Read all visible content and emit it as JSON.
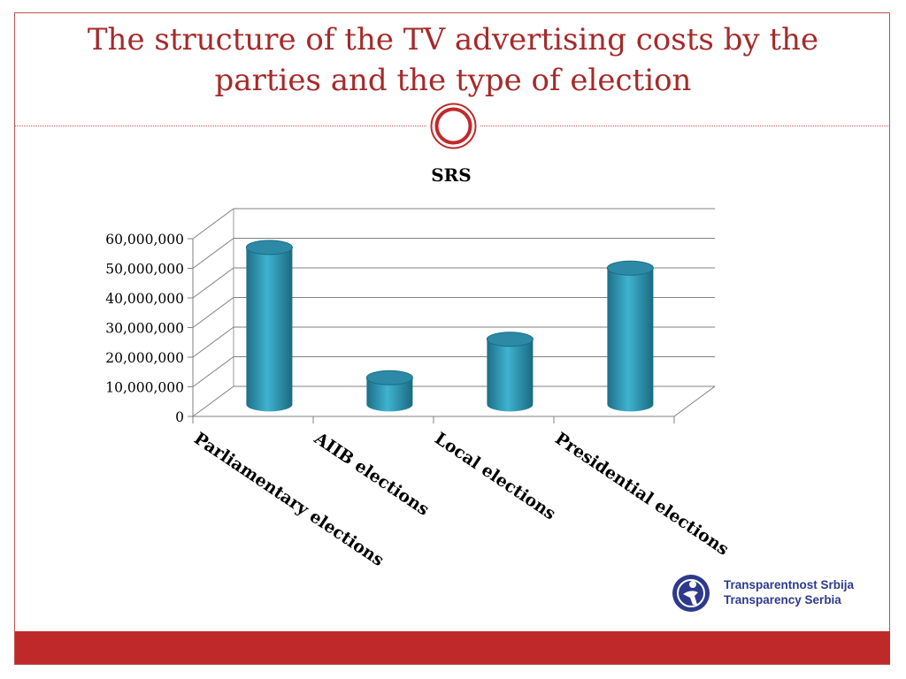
{
  "slide": {
    "title_line1": "The structure of the TV advertising costs by the",
    "title_line2": "parties and the type of election"
  },
  "logo": {
    "line1": "Transparentnost Srbija",
    "line2": "Transparency Serbia"
  },
  "colors": {
    "title": "#a52a2a",
    "accent_red": "#c0292a",
    "bar": "#2a93b0",
    "logo_blue": "#2d3a8c"
  },
  "chart_data": {
    "type": "bar",
    "title": "SRS",
    "categories": [
      "Parliamentary elections",
      "AIIB elections",
      "Local elections",
      "Presidential elections"
    ],
    "values": [
      53000000,
      9000000,
      22000000,
      46000000
    ],
    "yticks": [
      "0",
      "10,000,000",
      "20,000,000",
      "30,000,000",
      "40,000,000",
      "50,000,000",
      "60,000,000"
    ],
    "ylim": [
      0,
      60000000
    ],
    "grid": true,
    "style": "3d-cylinder",
    "legend": "none"
  }
}
